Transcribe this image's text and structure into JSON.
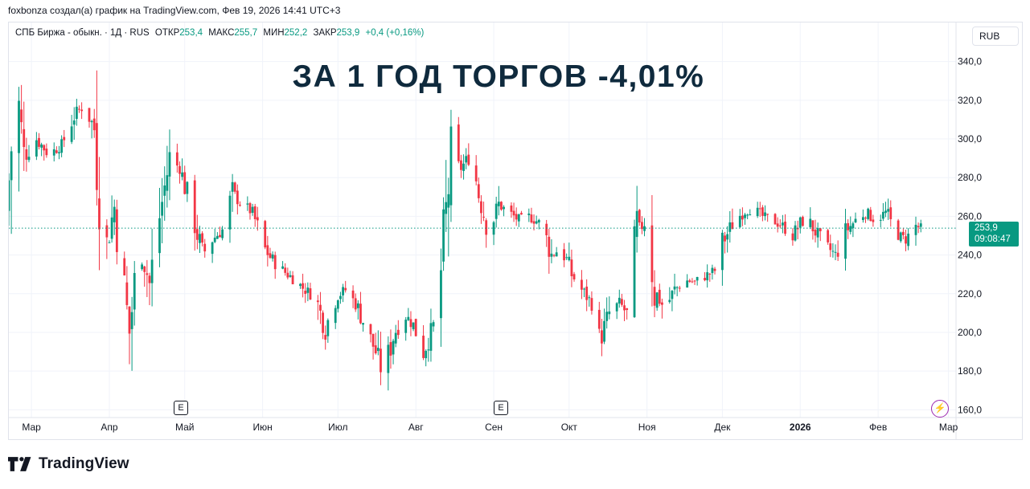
{
  "caption": "foxbonza создал(а) график на TradingView.com, Фев 19, 2026 14:41 UTC+3",
  "legend": {
    "symbol": "СПБ Биржа - обыкн. · 1Д · RUS",
    "open_label": "ОТКР",
    "open": "253,4",
    "high_label": "МАКС",
    "high": "255,7",
    "low_label": "МИН",
    "low": "252,2",
    "close_label": "ЗАКР",
    "close": "253,9",
    "change": "+0,4 (+0,16%)"
  },
  "currency": "RUB",
  "overlay_title": "ЗА 1 ГОД ТОРГОВ -4,01%",
  "price_tag": {
    "price": "253,9",
    "countdown": "09:08:47"
  },
  "earnings_marker": "E",
  "brand": "TradingView",
  "icons": {
    "lightning": "lightning-icon",
    "logo": "tradingview-logo-icon"
  },
  "colors": {
    "up": "#089981",
    "down": "#f23645",
    "grid": "#f0f3fa",
    "text": "#131722",
    "title": "#0f2a3d",
    "events": "#9c27b0"
  },
  "chart_data": {
    "type": "candlestick",
    "title": "",
    "ylabel": "RUB",
    "ylim": [
      156,
      344
    ],
    "grid": true,
    "y_ticks": [
      "340,0",
      "320,0",
      "300,0",
      "280,0",
      "260,0",
      "240,0",
      "220,0",
      "200,0",
      "180,0",
      "160,0"
    ],
    "y_tick_values": [
      340,
      320,
      300,
      280,
      260,
      240,
      220,
      200,
      180,
      160
    ],
    "x_ticks": [
      "Мар",
      "Апр",
      "Май",
      "Июн",
      "Июл",
      "Авг",
      "Сен",
      "Окт",
      "Ноя",
      "Дек",
      "2026",
      "Фев",
      "Мар"
    ],
    "x_tick_dates": [
      "2025-03-01",
      "2025-04-01",
      "2025-05-01",
      "2025-06-01",
      "2025-07-01",
      "2025-08-01",
      "2025-09-01",
      "2025-10-01",
      "2025-11-01",
      "2025-12-01",
      "2026-01-01",
      "2026-02-01",
      "2026-03-01"
    ],
    "x_range": [
      "2025-02-20",
      "2026-03-04"
    ],
    "last_price": 253.9,
    "earnings_dates": [
      "2025-04-30",
      "2025-08-30"
    ],
    "series": [
      {
        "points": [
          {
            "t": "2025-02-20",
            "v": 262
          },
          {
            "t": "2025-02-24",
            "v": 330
          },
          {
            "t": "2025-02-27",
            "v": 290
          },
          {
            "t": "2025-03-04",
            "v": 300
          },
          {
            "t": "2025-03-09",
            "v": 292
          },
          {
            "t": "2025-03-14",
            "v": 297
          },
          {
            "t": "2025-03-19",
            "v": 312
          },
          {
            "t": "2025-03-23",
            "v": 318
          },
          {
            "t": "2025-03-27",
            "v": 305
          },
          {
            "t": "2025-03-31",
            "v": 240
          },
          {
            "t": "2025-04-04",
            "v": 265
          },
          {
            "t": "2025-04-07",
            "v": 232
          },
          {
            "t": "2025-04-10",
            "v": 200
          },
          {
            "t": "2025-04-14",
            "v": 248
          },
          {
            "t": "2025-04-18",
            "v": 225
          },
          {
            "t": "2025-04-22",
            "v": 260
          },
          {
            "t": "2025-04-26",
            "v": 290
          },
          {
            "t": "2025-04-30",
            "v": 285
          },
          {
            "t": "2025-05-05",
            "v": 262
          },
          {
            "t": "2025-05-09",
            "v": 240
          },
          {
            "t": "2025-05-13",
            "v": 248
          },
          {
            "t": "2025-05-17",
            "v": 253
          },
          {
            "t": "2025-05-21",
            "v": 272
          },
          {
            "t": "2025-05-25",
            "v": 266
          },
          {
            "t": "2025-05-29",
            "v": 262
          },
          {
            "t": "2025-06-02",
            "v": 245
          },
          {
            "t": "2025-06-06",
            "v": 237
          },
          {
            "t": "2025-06-10",
            "v": 232
          },
          {
            "t": "2025-06-14",
            "v": 228
          },
          {
            "t": "2025-06-18",
            "v": 223
          },
          {
            "t": "2025-06-23",
            "v": 218
          },
          {
            "t": "2025-06-27",
            "v": 202
          },
          {
            "t": "2025-07-01",
            "v": 218
          },
          {
            "t": "2025-07-05",
            "v": 222
          },
          {
            "t": "2025-07-09",
            "v": 215
          },
          {
            "t": "2025-07-13",
            "v": 203
          },
          {
            "t": "2025-07-17",
            "v": 190
          },
          {
            "t": "2025-07-20",
            "v": 178
          },
          {
            "t": "2025-07-24",
            "v": 198
          },
          {
            "t": "2025-07-28",
            "v": 210
          },
          {
            "t": "2025-08-01",
            "v": 204
          },
          {
            "t": "2025-08-05",
            "v": 190
          },
          {
            "t": "2025-08-09",
            "v": 203
          },
          {
            "t": "2025-08-12",
            "v": 232
          },
          {
            "t": "2025-08-16",
            "v": 290
          },
          {
            "t": "2025-08-20",
            "v": 285
          },
          {
            "t": "2025-08-24",
            "v": 292
          },
          {
            "t": "2025-08-27",
            "v": 272
          },
          {
            "t": "2025-08-31",
            "v": 252
          },
          {
            "t": "2025-09-04",
            "v": 266
          },
          {
            "t": "2025-09-08",
            "v": 262
          },
          {
            "t": "2025-09-12",
            "v": 258
          },
          {
            "t": "2025-09-16",
            "v": 260
          },
          {
            "t": "2025-09-21",
            "v": 256
          },
          {
            "t": "2025-09-25",
            "v": 240
          },
          {
            "t": "2025-09-29",
            "v": 244
          },
          {
            "t": "2025-10-03",
            "v": 230
          },
          {
            "t": "2025-10-07",
            "v": 222
          },
          {
            "t": "2025-10-11",
            "v": 215
          },
          {
            "t": "2025-10-14",
            "v": 195
          },
          {
            "t": "2025-10-18",
            "v": 210
          },
          {
            "t": "2025-10-22",
            "v": 215
          },
          {
            "t": "2025-10-26",
            "v": 208
          },
          {
            "t": "2025-10-29",
            "v": 252
          },
          {
            "t": "2025-11-02",
            "v": 258
          },
          {
            "t": "2025-11-05",
            "v": 222
          },
          {
            "t": "2025-11-09",
            "v": 212
          },
          {
            "t": "2025-11-13",
            "v": 222
          },
          {
            "t": "2025-11-17",
            "v": 227
          },
          {
            "t": "2025-11-21",
            "v": 226
          },
          {
            "t": "2025-11-25",
            "v": 229
          },
          {
            "t": "2025-11-29",
            "v": 232
          },
          {
            "t": "2025-12-02",
            "v": 246
          },
          {
            "t": "2025-12-06",
            "v": 256
          },
          {
            "t": "2025-12-10",
            "v": 262
          },
          {
            "t": "2025-12-14",
            "v": 264
          },
          {
            "t": "2025-12-18",
            "v": 260
          },
          {
            "t": "2025-12-22",
            "v": 258
          },
          {
            "t": "2025-12-26",
            "v": 255
          },
          {
            "t": "2025-12-30",
            "v": 250
          },
          {
            "t": "2026-01-04",
            "v": 260
          },
          {
            "t": "2026-01-08",
            "v": 252
          },
          {
            "t": "2026-01-12",
            "v": 245
          },
          {
            "t": "2026-01-16",
            "v": 240
          },
          {
            "t": "2026-01-20",
            "v": 252
          },
          {
            "t": "2026-01-24",
            "v": 258
          },
          {
            "t": "2026-01-28",
            "v": 262
          },
          {
            "t": "2026-02-01",
            "v": 258
          },
          {
            "t": "2026-02-05",
            "v": 262
          },
          {
            "t": "2026-02-09",
            "v": 251
          },
          {
            "t": "2026-02-13",
            "v": 248
          },
          {
            "t": "2026-02-17",
            "v": 255
          },
          {
            "t": "2026-02-19",
            "v": 253.9
          }
        ]
      }
    ]
  }
}
